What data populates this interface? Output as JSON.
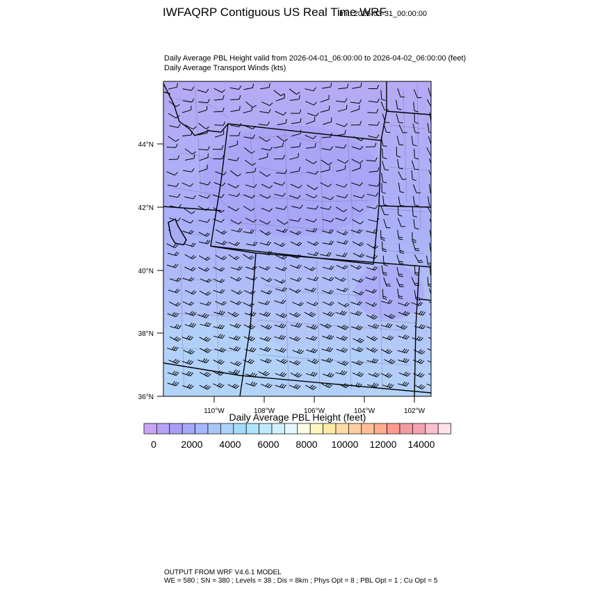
{
  "header": {
    "title": "IWFAQRP Contiguous US Real Time WRF",
    "init": "Init: 2026-03-31_00:00:00",
    "subtitle_line1": "Daily Average PBL Height valid from 2026-04-01_06:00:00 to 2026-04-02_06:00:00   (feet)",
    "subtitle_line2": "Daily Average Transport Winds   (kts)"
  },
  "map": {
    "lat_labels": [
      "44°N",
      "42°N",
      "40°N",
      "38°N",
      "36°N"
    ],
    "lon_labels": [
      "110°W",
      "108°W",
      "106°W",
      "104°W",
      "102°W"
    ],
    "fill_colors": [
      "#b8a8f4",
      "#a8b8f8",
      "#b0ccf8"
    ]
  },
  "colorbar": {
    "title": "Daily Average PBL Height  (feet)",
    "labels": [
      "0",
      "2000",
      "4000",
      "6000",
      "8000",
      "10000",
      "12000",
      "14000"
    ],
    "colors": [
      "#c6a6f4",
      "#b9a2f6",
      "#a89ef6",
      "#a2aaf8",
      "#a6b9f8",
      "#a9c6f9",
      "#aed2fa",
      "#a3dbf8",
      "#aee4fb",
      "#bfeafb",
      "#d0f0fc",
      "#e6f7fd",
      "#fefee6",
      "#fff6c2",
      "#ffeaa6",
      "#ffdca4",
      "#ffcea0",
      "#ffbe98",
      "#ffac90",
      "#fc9a90",
      "#f49aa2",
      "#f4a4b0",
      "#f8c0ca",
      "#fde2e8"
    ]
  },
  "footer": {
    "line1": "OUTPUT FROM WRF V4.6.1 MODEL",
    "line2": "WE = 580 ; SN = 380 ; Levels = 38 ; Dis = 8km ; Phys Opt = 8 ; PBL Opt = 1 ; Cu Opt = 5"
  }
}
